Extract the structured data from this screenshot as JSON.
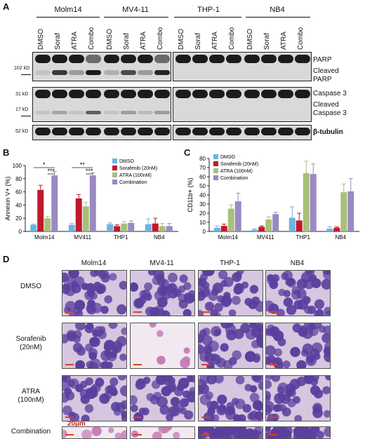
{
  "panel_a": {
    "letter": "A",
    "cell_lines": [
      "Molm14",
      "MV4-11",
      "THP-1",
      "NB4"
    ],
    "lanes": [
      "DMSO",
      "Soraf",
      "ATRA",
      "Combo"
    ],
    "labels": {
      "parp": "PARP",
      "cleaved_parp_1": "Cleaved",
      "cleaved_parp_2": "PARP",
      "casp3": "Caspase 3",
      "cleaved_casp3_1": "Cleaved",
      "cleaved_casp3_2": "Caspase 3",
      "tubulin": "β-tubulin"
    },
    "kd": {
      "k102": "102 kD",
      "k31": "31 kD",
      "k17": "17 kD",
      "k52": "52 kD"
    }
  },
  "panel_b": {
    "letter": "B"
  },
  "panel_c": {
    "letter": "C"
  },
  "panel_d": {
    "letter": "D",
    "col_labels": [
      "Molm14",
      "MV4-11",
      "THP-1",
      "NB4"
    ],
    "row_labels": [
      [
        "DMSO",
        ""
      ],
      [
        "Sorafenib",
        "(20nM)"
      ],
      [
        "ATRA",
        "(100nM)"
      ],
      [
        "Combination",
        ""
      ]
    ],
    "scale": "20µm",
    "colors": {
      "stain_purple": "#5a3f9e",
      "stain_pink": "#c77bb6",
      "bg": "#f2e9f0"
    }
  },
  "chart_data": [
    {
      "type": "bar",
      "panel": "B",
      "ylabel": "Annexin V+ (%)",
      "ylim": [
        0,
        100
      ],
      "yticks": [
        0,
        20,
        40,
        60,
        80,
        100
      ],
      "categories": [
        "Molm14",
        "MV411",
        "THP1",
        "NB4"
      ],
      "series": [
        {
          "name": "DMSO",
          "color": "#6fb3e0",
          "values": [
            10,
            10,
            11,
            11
          ],
          "errors": [
            1,
            2,
            2,
            8
          ]
        },
        {
          "name": "Sorafenib (20nM)",
          "color": "#c0182c",
          "values": [
            63,
            50,
            8,
            12
          ],
          "errors": [
            7,
            6,
            2,
            8
          ]
        },
        {
          "name": "ATRA (100nM)",
          "color": "#a8c07a",
          "values": [
            20,
            38,
            12,
            8
          ],
          "errors": [
            3,
            6,
            3,
            4
          ]
        },
        {
          "name": "Combination",
          "color": "#9a8ac2",
          "values": [
            85,
            85,
            13,
            8
          ],
          "errors": [
            6,
            4,
            3,
            4
          ]
        }
      ],
      "annotations": [
        {
          "text": "*",
          "category": "Molm14"
        },
        {
          "text": "***",
          "category": "Molm14"
        },
        {
          "text": "**",
          "category": "MV411"
        },
        {
          "text": "***",
          "category": "MV411"
        }
      ],
      "legend": "top-right"
    },
    {
      "type": "bar",
      "panel": "C",
      "ylabel": "CD11b+ (%)",
      "ylim": [
        0,
        80
      ],
      "yticks": [
        0,
        10,
        20,
        30,
        40,
        50,
        60,
        70,
        80
      ],
      "categories": [
        "Molm14",
        "MV411",
        "THP1",
        "NB4"
      ],
      "series": [
        {
          "name": "DMSO",
          "color": "#6fb3e0",
          "values": [
            4,
            2,
            15,
            3
          ],
          "errors": [
            2,
            1,
            12,
            2
          ]
        },
        {
          "name": "Sorafenib (20nM)",
          "color": "#c0182c",
          "values": [
            6,
            5,
            12,
            4
          ],
          "errors": [
            2,
            1,
            8,
            1
          ]
        },
        {
          "name": "ATRA (100nM)",
          "color": "#a8c07a",
          "values": [
            25,
            13,
            64,
            43
          ],
          "errors": [
            4,
            3,
            13,
            9
          ]
        },
        {
          "name": "Combination",
          "color": "#9a8ac2",
          "values": [
            33,
            19,
            63,
            44
          ],
          "errors": [
            9,
            2,
            11,
            14
          ]
        }
      ],
      "legend": "top-left"
    }
  ]
}
